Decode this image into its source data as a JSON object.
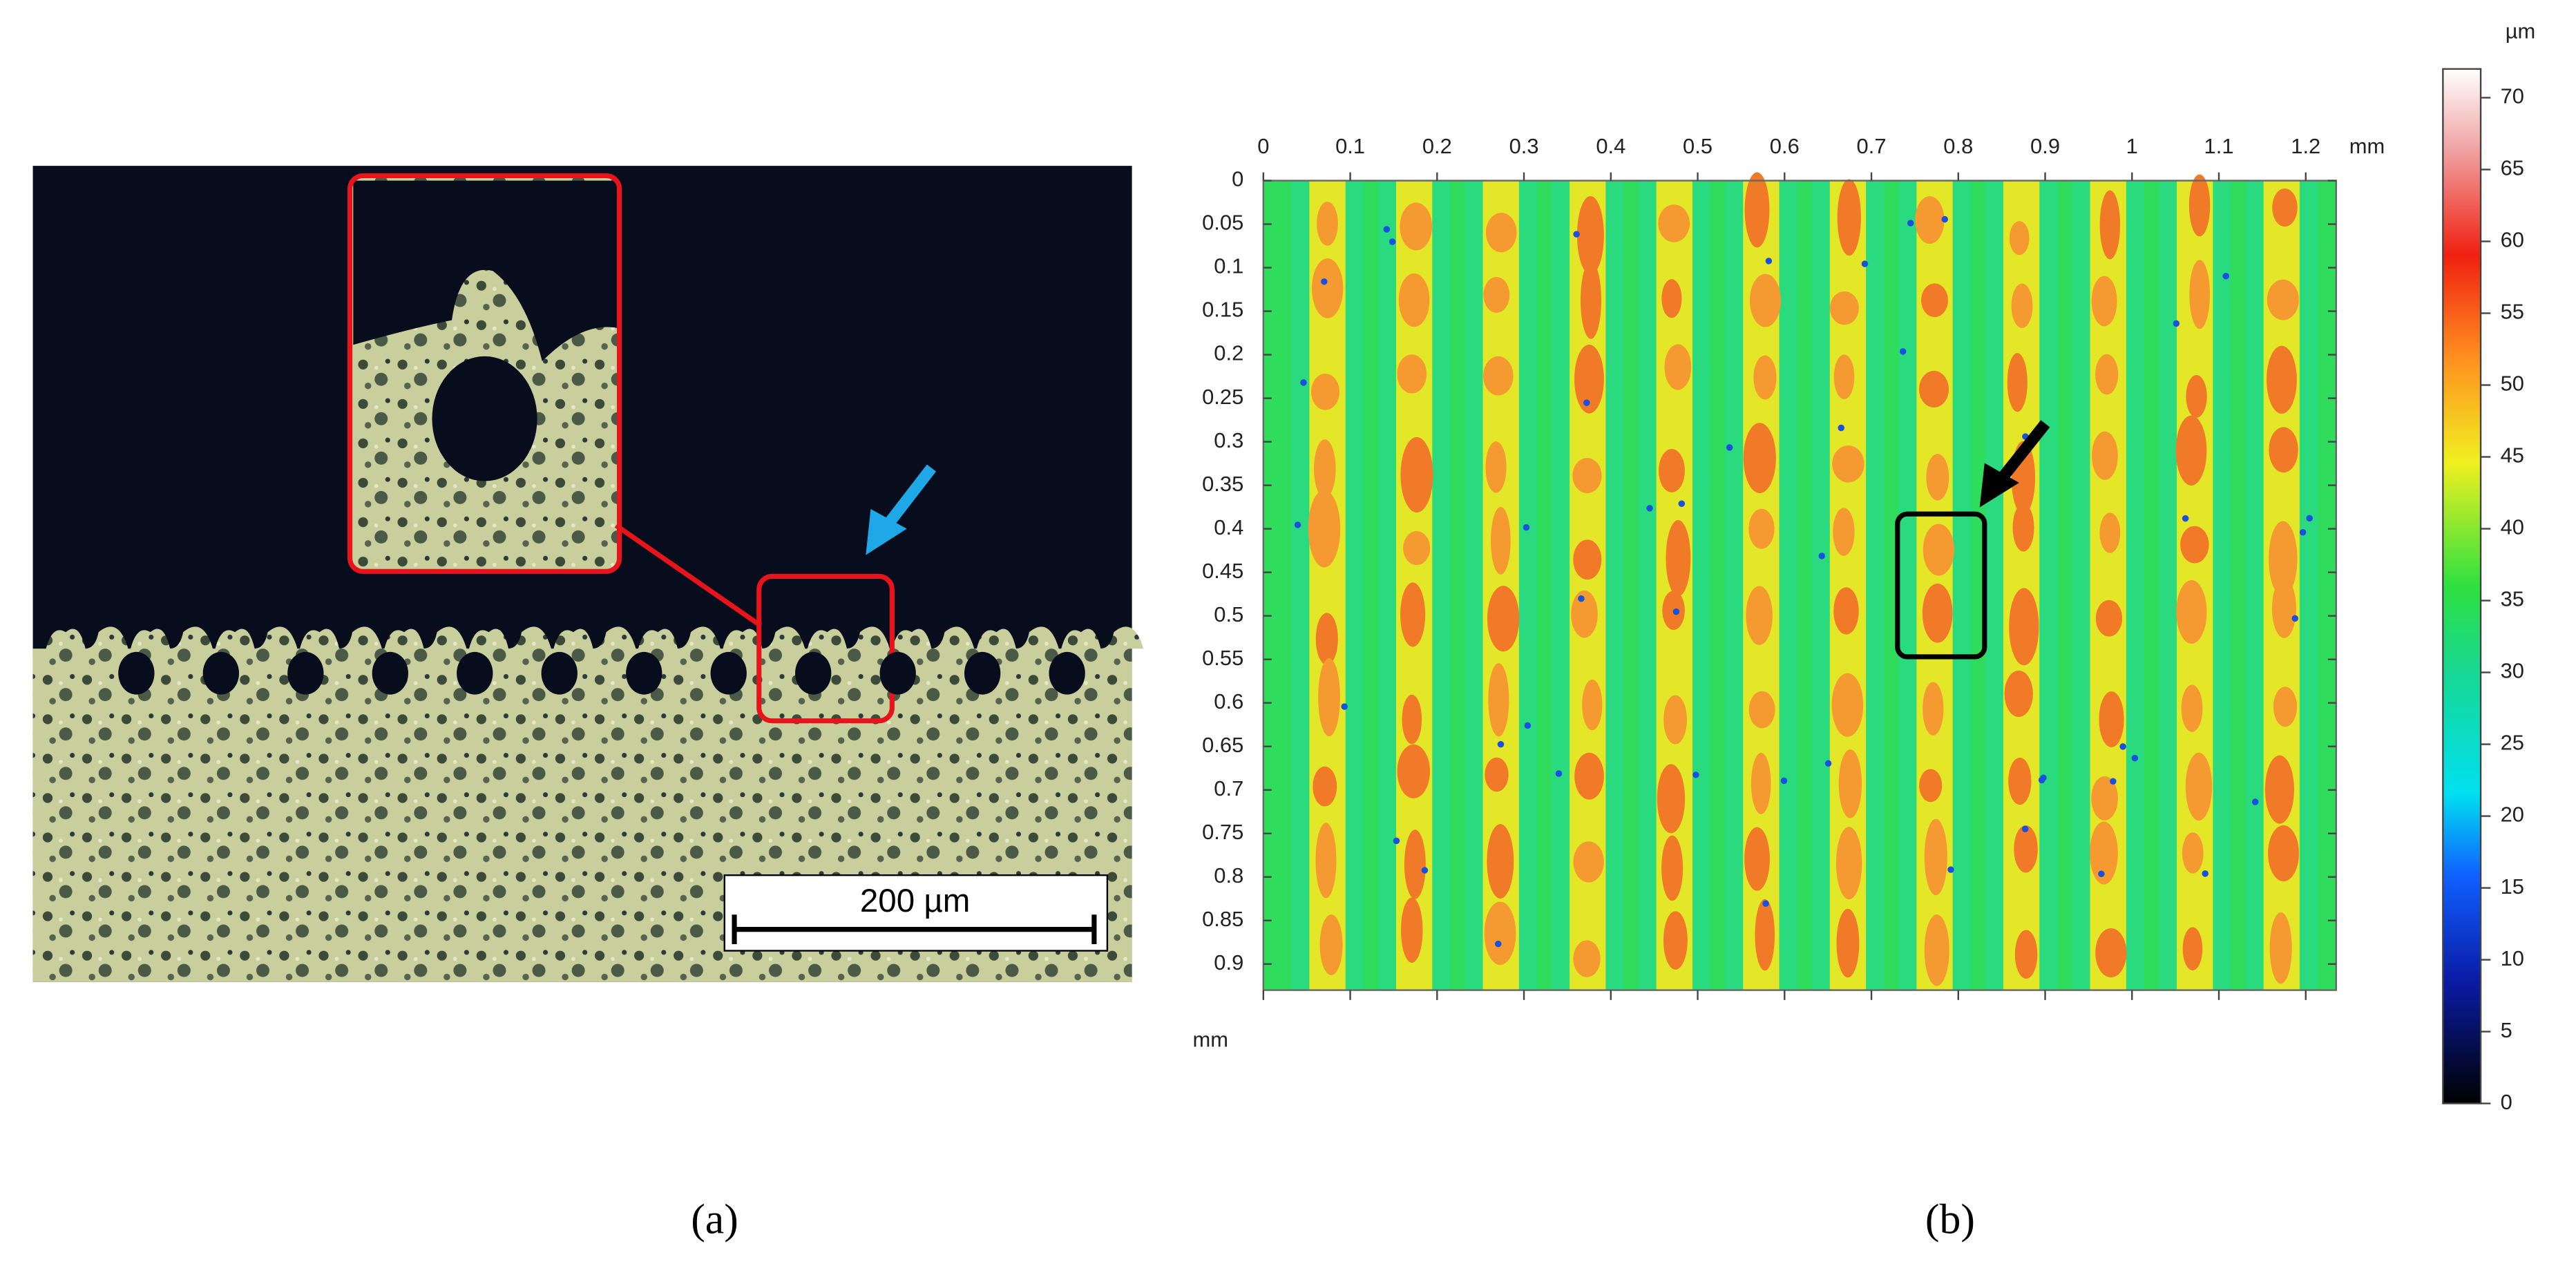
{
  "panel_a": {
    "label": "(a)",
    "scale_bar": "200 µm"
  },
  "panel_b": {
    "label": "(b)",
    "x_unit": "mm",
    "y_unit": "mm",
    "xlim": [
      0,
      1.235
    ],
    "xticks": [
      0,
      0.1,
      0.2,
      0.3,
      0.4,
      0.5,
      0.6,
      0.7,
      0.8,
      0.9,
      1,
      1.1,
      1.2
    ],
    "ylim": [
      0,
      0.93
    ],
    "yticks": [
      0,
      0.05,
      0.1,
      0.15,
      0.2,
      0.25,
      0.3,
      0.35,
      0.4,
      0.45,
      0.5,
      0.55,
      0.6,
      0.65,
      0.7,
      0.75,
      0.8,
      0.85,
      0.9
    ],
    "colorbar": {
      "unit": "µm",
      "lim": [
        0,
        72
      ],
      "ticks": [
        0,
        5,
        10,
        15,
        20,
        25,
        30,
        35,
        40,
        45,
        50,
        55,
        60,
        65,
        70
      ]
    }
  }
}
